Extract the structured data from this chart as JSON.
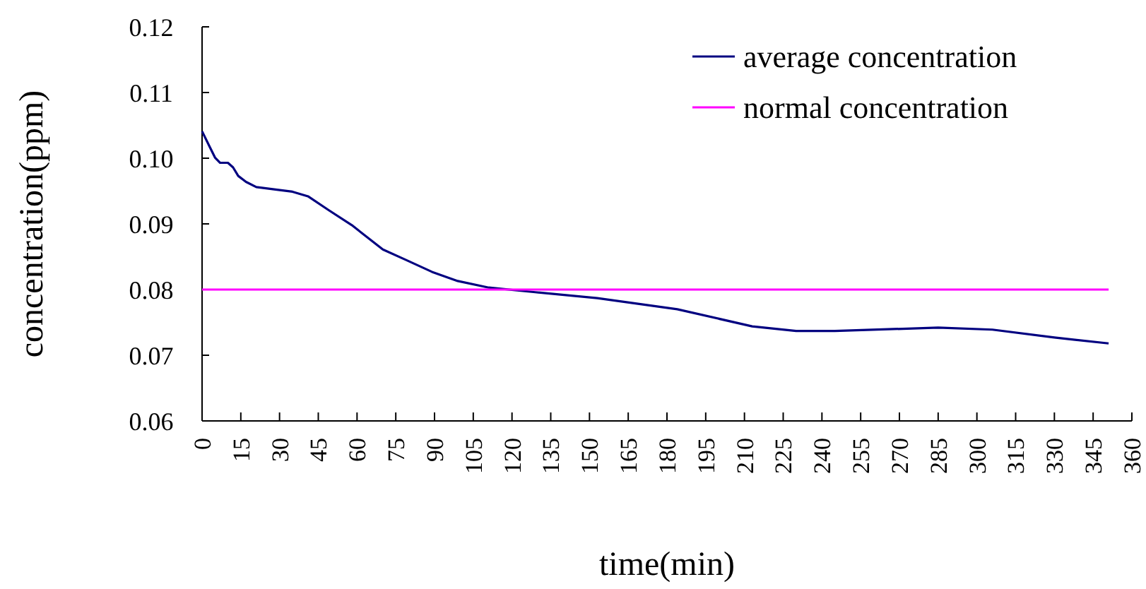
{
  "chart_data": {
    "type": "line",
    "xlabel": "time(min)",
    "ylabel": "concentration(ppm)",
    "xlim": [
      0,
      360
    ],
    "ylim": [
      0.06,
      0.12
    ],
    "xticks": [
      0,
      15,
      30,
      45,
      60,
      75,
      90,
      105,
      120,
      135,
      150,
      165,
      180,
      195,
      210,
      225,
      240,
      255,
      270,
      285,
      300,
      315,
      330,
      345,
      360
    ],
    "yticks": [
      {
        "value": 0.06,
        "label": "0.06"
      },
      {
        "value": 0.07,
        "label": "0.07"
      },
      {
        "value": 0.08,
        "label": "0.08"
      },
      {
        "value": 0.09,
        "label": "0.09"
      },
      {
        "value": 0.1,
        "label": "0.10"
      },
      {
        "value": 0.11,
        "label": "0.11"
      },
      {
        "value": 0.12,
        "label": "0.12"
      }
    ],
    "legend": "top right",
    "grid": false,
    "marker": "none",
    "line_style": "solid",
    "series": [
      {
        "name": "average concentration",
        "color": "#000080",
        "x": [
          0,
          3,
          5,
          7,
          10,
          12,
          14,
          17,
          21,
          29,
          35,
          41,
          49,
          58,
          70,
          79,
          89,
          99,
          111,
          129,
          153,
          184,
          213,
          230,
          245,
          285,
          306,
          330,
          351
        ],
        "values": [
          0.1041,
          0.1017,
          0.1001,
          0.0993,
          0.0993,
          0.0986,
          0.0973,
          0.0964,
          0.0956,
          0.0952,
          0.0949,
          0.0942,
          0.0921,
          0.0898,
          0.0861,
          0.0845,
          0.0827,
          0.0813,
          0.0803,
          0.0796,
          0.0787,
          0.077,
          0.0744,
          0.0737,
          0.0737,
          0.0742,
          0.0739,
          0.0727,
          0.0718
        ]
      },
      {
        "name": "normal concentration",
        "color": "#ff00ff",
        "x": [
          0,
          351
        ],
        "values": [
          0.08,
          0.08
        ]
      }
    ]
  }
}
